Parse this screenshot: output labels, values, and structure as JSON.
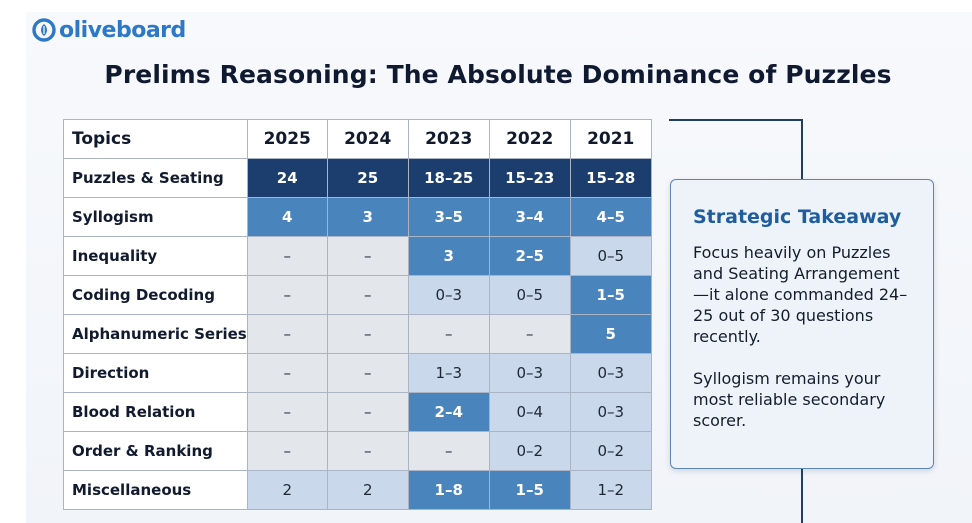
{
  "brand": {
    "name": "oliveboard",
    "logo_icon": "oliveboard-logo-icon",
    "color": "#2e78c8"
  },
  "title": "Prelims Reasoning: The Absolute Dominance of Puzzles",
  "table": {
    "columns": [
      "Topics",
      "2025",
      "2024",
      "2023",
      "2022",
      "2021"
    ],
    "rows": [
      {
        "topic": "Puzzles & Seating",
        "values": [
          "24",
          "25",
          "18–25",
          "15–23",
          "15–28"
        ],
        "shades": [
          "dark",
          "dark",
          "dark",
          "dark",
          "dark"
        ]
      },
      {
        "topic": "Syllogism",
        "values": [
          "4",
          "3",
          "3–5",
          "3–4",
          "4–5"
        ],
        "shades": [
          "mid",
          "mid",
          "mid",
          "mid",
          "mid"
        ]
      },
      {
        "topic": "Inequality",
        "values": [
          "–",
          "–",
          "3",
          "2–5",
          "0–5"
        ],
        "shades": [
          "empty",
          "empty",
          "mid",
          "mid",
          "light"
        ]
      },
      {
        "topic": "Coding Decoding",
        "values": [
          "–",
          "–",
          "0–3",
          "0–5",
          "1–5"
        ],
        "shades": [
          "empty",
          "empty",
          "light",
          "light",
          "mid"
        ]
      },
      {
        "topic": "Alphanumeric Series",
        "values": [
          "–",
          "–",
          "–",
          "–",
          "5"
        ],
        "shades": [
          "empty",
          "empty",
          "empty",
          "empty",
          "mid"
        ]
      },
      {
        "topic": "Direction",
        "values": [
          "–",
          "–",
          "1–3",
          "0–3",
          "0–3"
        ],
        "shades": [
          "empty",
          "empty",
          "light",
          "light",
          "light"
        ]
      },
      {
        "topic": "Blood Relation",
        "values": [
          "–",
          "–",
          "2–4",
          "0–4",
          "0–3"
        ],
        "shades": [
          "empty",
          "empty",
          "mid",
          "light",
          "light"
        ]
      },
      {
        "topic": "Order & Ranking",
        "values": [
          "–",
          "–",
          "–",
          "0–2",
          "0–2"
        ],
        "shades": [
          "empty",
          "empty",
          "empty",
          "light",
          "light"
        ]
      },
      {
        "topic": "Miscellaneous",
        "values": [
          "2",
          "2",
          "1–8",
          "1–5",
          "1–2"
        ],
        "shades": [
          "light",
          "light",
          "mid",
          "mid",
          "light"
        ]
      }
    ]
  },
  "takeaway": {
    "title": "Strategic Takeaway",
    "paragraph1": "Focus heavily on Puzzles and Seating Arrangement—it alone commanded 24–25 out of 30 questions recently.",
    "paragraph2": "Syllogism remains your most reliable secondary scorer."
  },
  "colors": {
    "dark": "#1c3e6e",
    "mid": "#4a84bd",
    "light": "#c9d8ea",
    "empty": "#e3e6ea",
    "accent": "#1f5d9e",
    "border": "#5e86b3"
  }
}
